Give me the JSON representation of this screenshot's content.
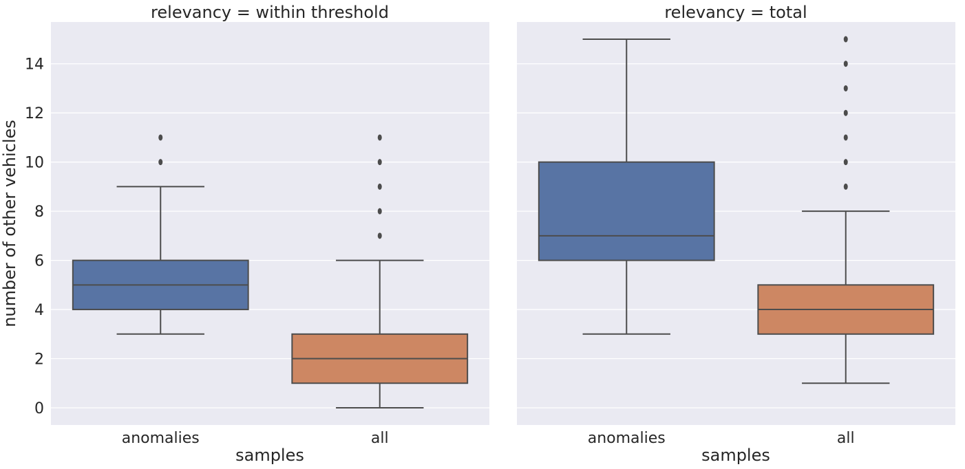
{
  "chart_data": [
    {
      "type": "box",
      "title": "relevancy = within threshold",
      "xlabel": "samples",
      "ylabel": "number of other vehicles",
      "ylim": [
        -0.7,
        15.7
      ],
      "yticks": [
        0,
        2,
        4,
        6,
        8,
        10,
        12,
        14
      ],
      "grid": true,
      "categories": [
        "anomalies",
        "all"
      ],
      "colors": [
        "#5874a4",
        "#cd8763"
      ],
      "boxes": [
        {
          "category": "anomalies",
          "whisker_low": 3,
          "q1": 4,
          "median": 5,
          "q3": 6,
          "whisker_high": 9,
          "outliers": [
            10,
            11
          ]
        },
        {
          "category": "all",
          "whisker_low": 0,
          "q1": 1,
          "median": 2,
          "q3": 3,
          "whisker_high": 6,
          "outliers": [
            7,
            8,
            9,
            10,
            11
          ]
        }
      ]
    },
    {
      "type": "box",
      "title": "relevancy = total",
      "xlabel": "samples",
      "ylabel": "",
      "ylim": [
        -0.7,
        15.7
      ],
      "yticks": [
        0,
        2,
        4,
        6,
        8,
        10,
        12,
        14
      ],
      "grid": true,
      "categories": [
        "anomalies",
        "all"
      ],
      "colors": [
        "#5874a4",
        "#cd8763"
      ],
      "boxes": [
        {
          "category": "anomalies",
          "whisker_low": 3,
          "q1": 6,
          "median": 7,
          "q3": 10,
          "whisker_high": 15,
          "outliers": []
        },
        {
          "category": "all",
          "whisker_low": 1,
          "q1": 3,
          "median": 4,
          "q3": 5,
          "whisker_high": 8,
          "outliers": [
            9,
            10,
            11,
            12,
            13,
            14,
            15
          ]
        }
      ]
    }
  ]
}
